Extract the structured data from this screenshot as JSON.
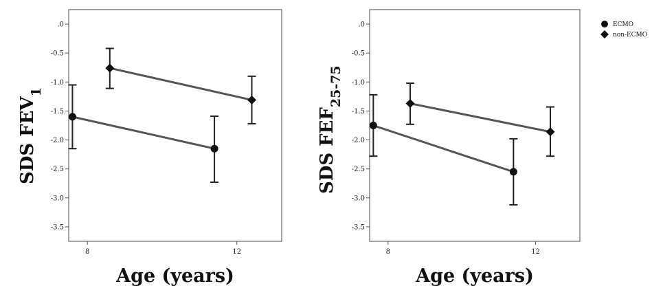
{
  "legend": {
    "position": "top-right",
    "items": [
      {
        "label": "ECMO",
        "marker": "circle"
      },
      {
        "label": "non-ECMO",
        "marker": "diamond"
      }
    ]
  },
  "chart_data": [
    {
      "type": "line",
      "ylabel": "SDS FEV",
      "ylabel_sub": "1",
      "xlabel": "Age (years)",
      "xlim": [
        7.5,
        13.2
      ],
      "ylim": [
        -3.75,
        0.25
      ],
      "xticks": [
        8,
        12
      ],
      "xtick_labels": [
        "8",
        "12"
      ],
      "yticks": [
        0,
        -0.5,
        -1.0,
        -1.5,
        -2.0,
        -2.5,
        -3.0,
        -3.5
      ],
      "ytick_labels": [
        ".0",
        "-0.5",
        "-1.0",
        "-1.5",
        "-2.0",
        "-2.5",
        "-3.0",
        "-3.5"
      ],
      "grid": false,
      "series": [
        {
          "name": "ECMO",
          "marker": "circle",
          "x": [
            7.6,
            11.4
          ],
          "y": [
            -1.6,
            -2.15
          ],
          "err_low": [
            -2.15,
            -2.73
          ],
          "err_high": [
            -1.05,
            -1.59
          ]
        },
        {
          "name": "non-ECMO",
          "marker": "diamond",
          "x": [
            8.6,
            12.4
          ],
          "y": [
            -0.76,
            -1.31
          ],
          "err_low": [
            -1.11,
            -1.72
          ],
          "err_high": [
            -0.42,
            -0.9
          ]
        }
      ]
    },
    {
      "type": "line",
      "ylabel": "SDS FEF",
      "ylabel_sub": "25-75",
      "xlabel": "Age (years)",
      "xlim": [
        7.5,
        13.2
      ],
      "ylim": [
        -3.75,
        0.25
      ],
      "xticks": [
        8,
        12
      ],
      "xtick_labels": [
        "8",
        "12"
      ],
      "yticks": [
        0,
        -0.5,
        -1.0,
        -1.5,
        -2.0,
        -2.5,
        -3.0,
        -3.5
      ],
      "ytick_labels": [
        ".0",
        "-0.5",
        "-1.0",
        "-1.5",
        "-2.0",
        "-2.5",
        "-3.0",
        "-3.5"
      ],
      "grid": false,
      "series": [
        {
          "name": "ECMO",
          "marker": "circle",
          "x": [
            7.6,
            11.4
          ],
          "y": [
            -1.75,
            -2.55
          ],
          "err_low": [
            -2.28,
            -3.12
          ],
          "err_high": [
            -1.22,
            -1.98
          ]
        },
        {
          "name": "non-ECMO",
          "marker": "diamond",
          "x": [
            8.6,
            12.4
          ],
          "y": [
            -1.37,
            -1.86
          ],
          "err_low": [
            -1.73,
            -2.28
          ],
          "err_high": [
            -1.02,
            -1.43
          ]
        }
      ]
    }
  ]
}
